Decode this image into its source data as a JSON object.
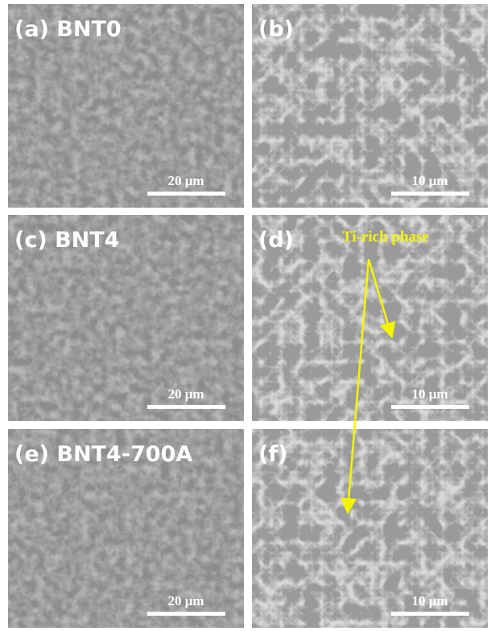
{
  "panels": [
    {
      "label": "(a) BNT0",
      "scale_bar": "20 μm"
    },
    {
      "label": "(b)",
      "scale_bar": "10 μm"
    },
    {
      "label": "(c) BNT4",
      "scale_bar": "20 μm"
    },
    {
      "label": "(d)",
      "scale_bar": "10 μm"
    },
    {
      "label": "(e) BNT4-700A",
      "scale_bar": "20 μm"
    },
    {
      "label": "(f)",
      "scale_bar": "10 μm"
    }
  ],
  "annotation": "Ti-rich phase"
}
